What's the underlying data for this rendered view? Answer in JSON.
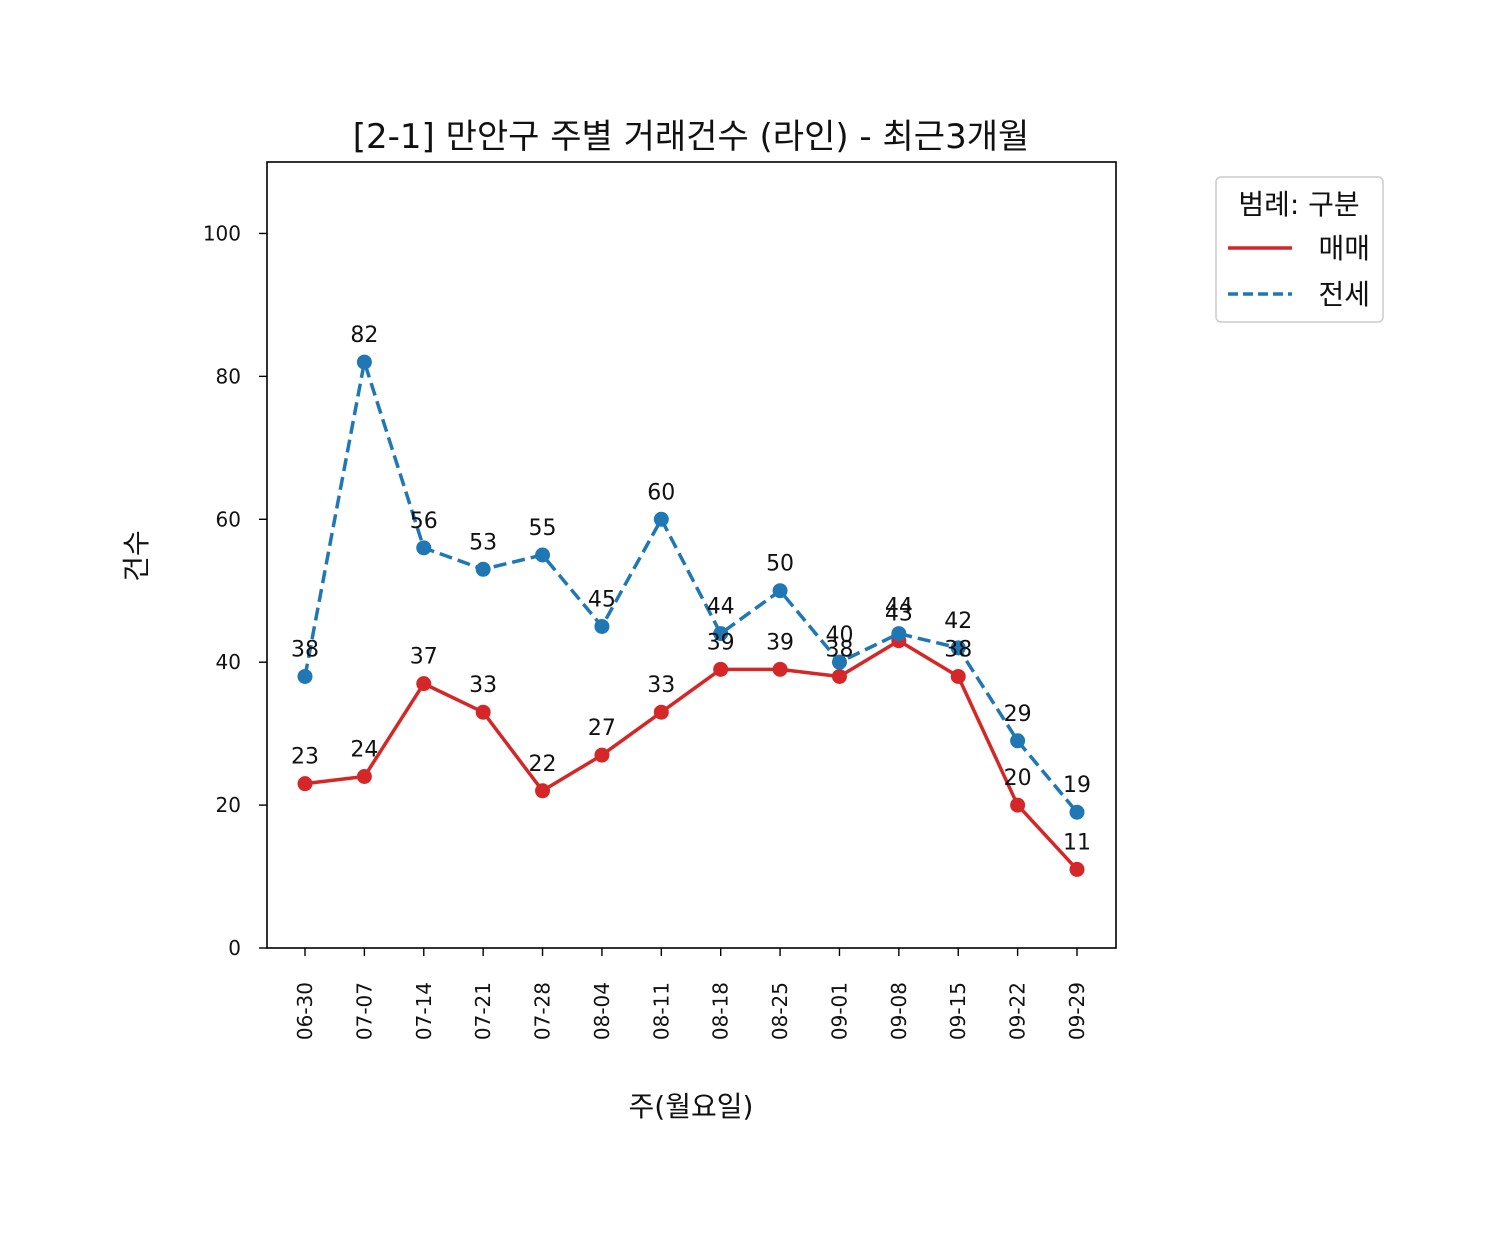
{
  "chart_data": {
    "type": "line",
    "title": "[2-1] 만안구 주별 거래건수 (라인) - 최근3개월",
    "xlabel": "주(월요일)",
    "ylabel": "건수",
    "categories": [
      "06-30",
      "07-07",
      "07-14",
      "07-21",
      "07-28",
      "08-04",
      "08-11",
      "08-18",
      "08-25",
      "09-01",
      "09-08",
      "09-15",
      "09-22",
      "09-29"
    ],
    "ylim": [
      0,
      110
    ],
    "yticks": [
      0,
      20,
      40,
      60,
      80,
      100
    ],
    "grid": false,
    "legend": {
      "title": "범례: 구분",
      "placement": "outside-top-right"
    },
    "series": [
      {
        "name": "매매",
        "values": [
          23,
          24,
          37,
          33,
          22,
          27,
          33,
          39,
          39,
          38,
          43,
          38,
          20,
          11
        ],
        "color": "#d62728",
        "style": "solid"
      },
      {
        "name": "전세",
        "values": [
          38,
          82,
          56,
          53,
          55,
          45,
          60,
          44,
          50,
          40,
          44,
          42,
          29,
          19
        ],
        "color": "#1f77b4",
        "style": "dashed"
      }
    ]
  }
}
